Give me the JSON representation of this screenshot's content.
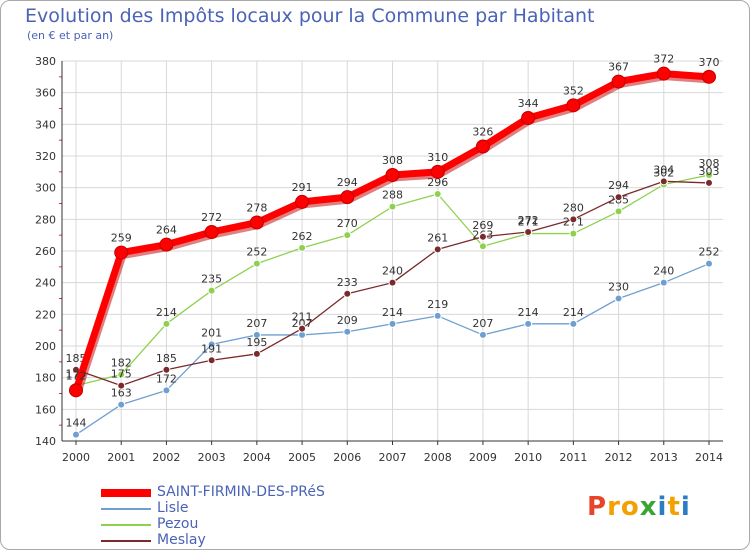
{
  "header": {
    "title": "Evolution des Impôts locaux pour la Commune par Habitant",
    "subtitle": "(en € et par an)"
  },
  "logo": {
    "text": "Proxiti",
    "letters": [
      {
        "char": "P",
        "color": "#e8442b"
      },
      {
        "char": "r",
        "color": "#f2a100"
      },
      {
        "char": "o",
        "color": "#f2a100"
      },
      {
        "char": "x",
        "color": "#3aa535"
      },
      {
        "char": "i",
        "color": "#2a7dc4"
      },
      {
        "char": "t",
        "color": "#f2a100"
      },
      {
        "char": "i",
        "color": "#2a7dc4"
      }
    ]
  },
  "chart_data": {
    "type": "line",
    "title": "Evolution des Impôts locaux pour la Commune par Habitant",
    "subtitle": "(en € et par an)",
    "x": [
      2000,
      2001,
      2002,
      2003,
      2004,
      2005,
      2006,
      2007,
      2008,
      2009,
      2010,
      2011,
      2012,
      2013,
      2014
    ],
    "ylim": [
      140,
      380
    ],
    "yticks": [
      140,
      160,
      180,
      200,
      220,
      240,
      260,
      280,
      300,
      320,
      340,
      360,
      380
    ],
    "grid": true,
    "legend_position": "bottom-left",
    "series": [
      {
        "name": "Lisle",
        "color": "#6f9fd0",
        "values": [
          144,
          163,
          172,
          201,
          207,
          207,
          209,
          214,
          219,
          207,
          214,
          214,
          230,
          240,
          252
        ]
      },
      {
        "name": "Pezou",
        "color": "#8fd14f",
        "values": [
          175,
          182,
          214,
          235,
          252,
          262,
          270,
          288,
          296,
          263,
          271,
          271,
          285,
          302,
          308
        ]
      },
      {
        "name": "Meslay",
        "color": "#7a2a2a",
        "values": [
          185,
          175,
          185,
          191,
          195,
          211,
          233,
          240,
          261,
          269,
          272,
          280,
          294,
          304,
          303
        ]
      },
      {
        "name": "SAINT-FIRMIN-DES-PRéS",
        "color": "#ff0000",
        "values": [
          172,
          259,
          264,
          272,
          278,
          291,
          294,
          308,
          310,
          326,
          344,
          352,
          367,
          372,
          370
        ]
      }
    ]
  }
}
